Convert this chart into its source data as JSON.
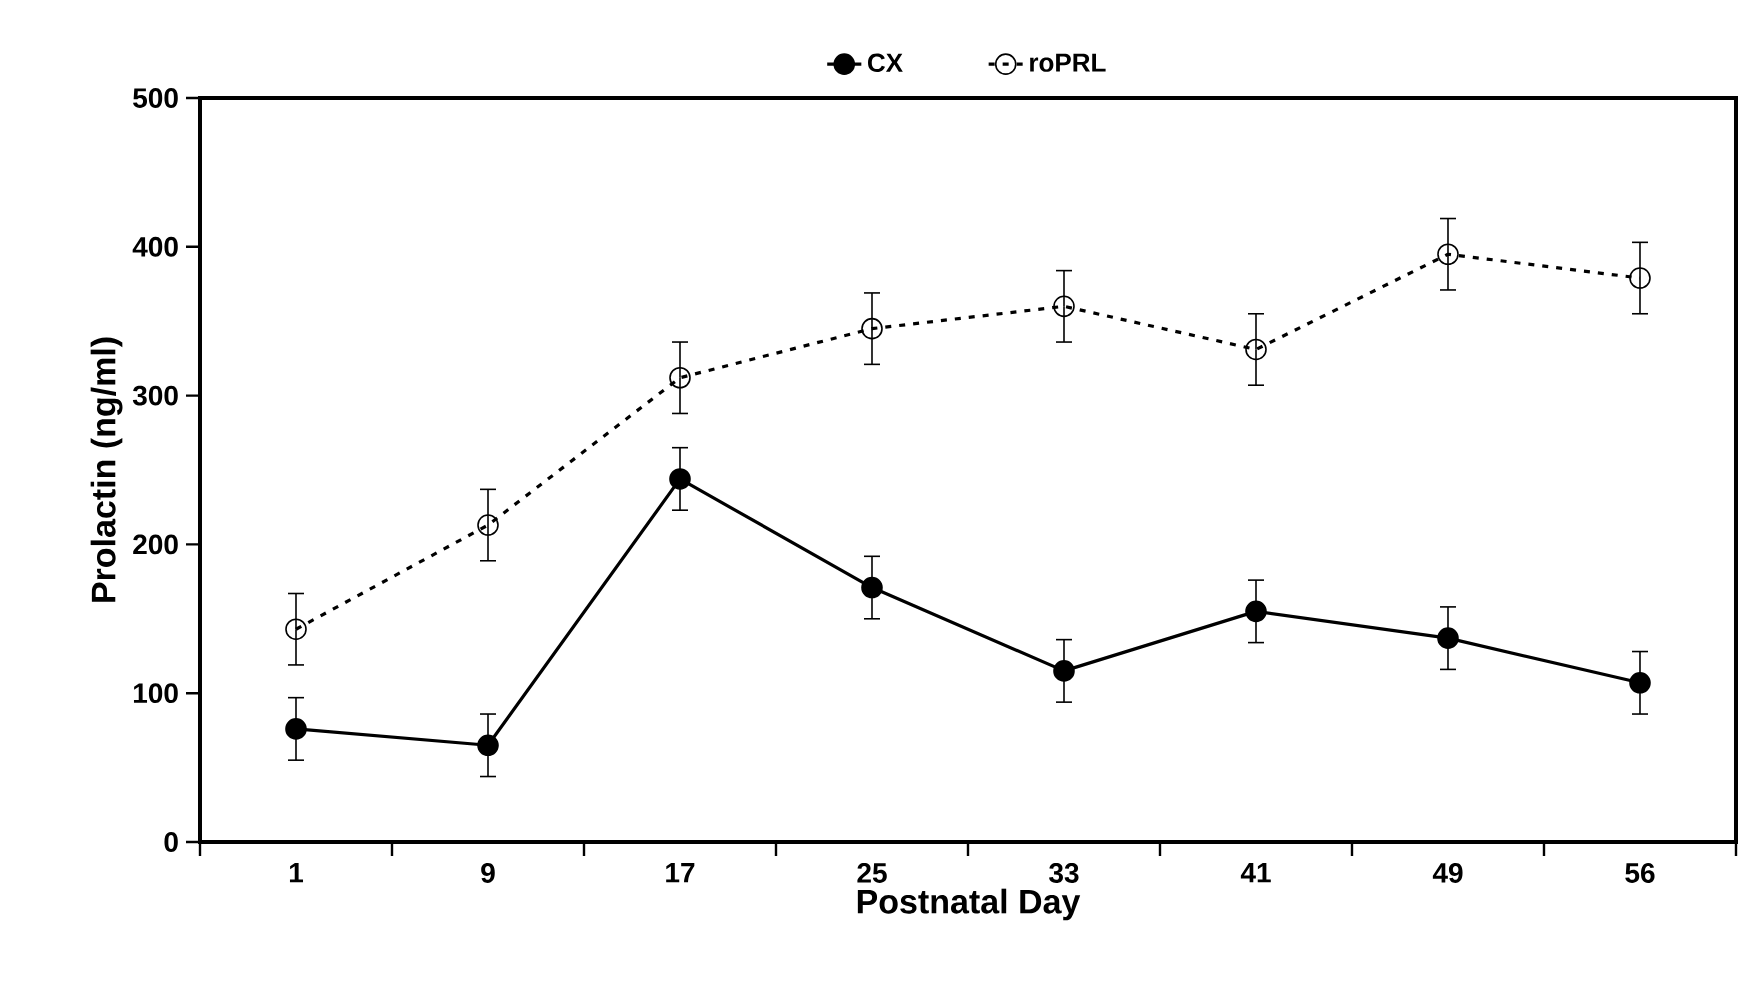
{
  "chart_data": {
    "type": "line",
    "xlabel": "Postnatal Day",
    "ylabel": "Prolactin (ng/ml)",
    "categories": [
      "1",
      "9",
      "17",
      "25",
      "33",
      "41",
      "49",
      "56"
    ],
    "ylim": [
      0,
      500
    ],
    "yticks": [
      0,
      100,
      200,
      300,
      400,
      500
    ],
    "marker": "circle",
    "legend": "top",
    "grid": false,
    "series": [
      {
        "name": "CX",
        "color": "#000000",
        "line_style": "solid",
        "values": [
          76,
          65,
          244,
          171,
          115,
          155,
          137,
          107
        ],
        "errors": [
          21,
          21,
          21,
          21,
          21,
          21,
          21,
          21
        ]
      },
      {
        "name": "roPRL",
        "color": "#000000",
        "line_style": "dashed",
        "values": [
          143,
          213,
          312,
          345,
          360,
          331,
          395,
          379
        ],
        "errors": [
          24,
          24,
          24,
          24,
          24,
          24,
          24,
          24
        ]
      }
    ]
  }
}
